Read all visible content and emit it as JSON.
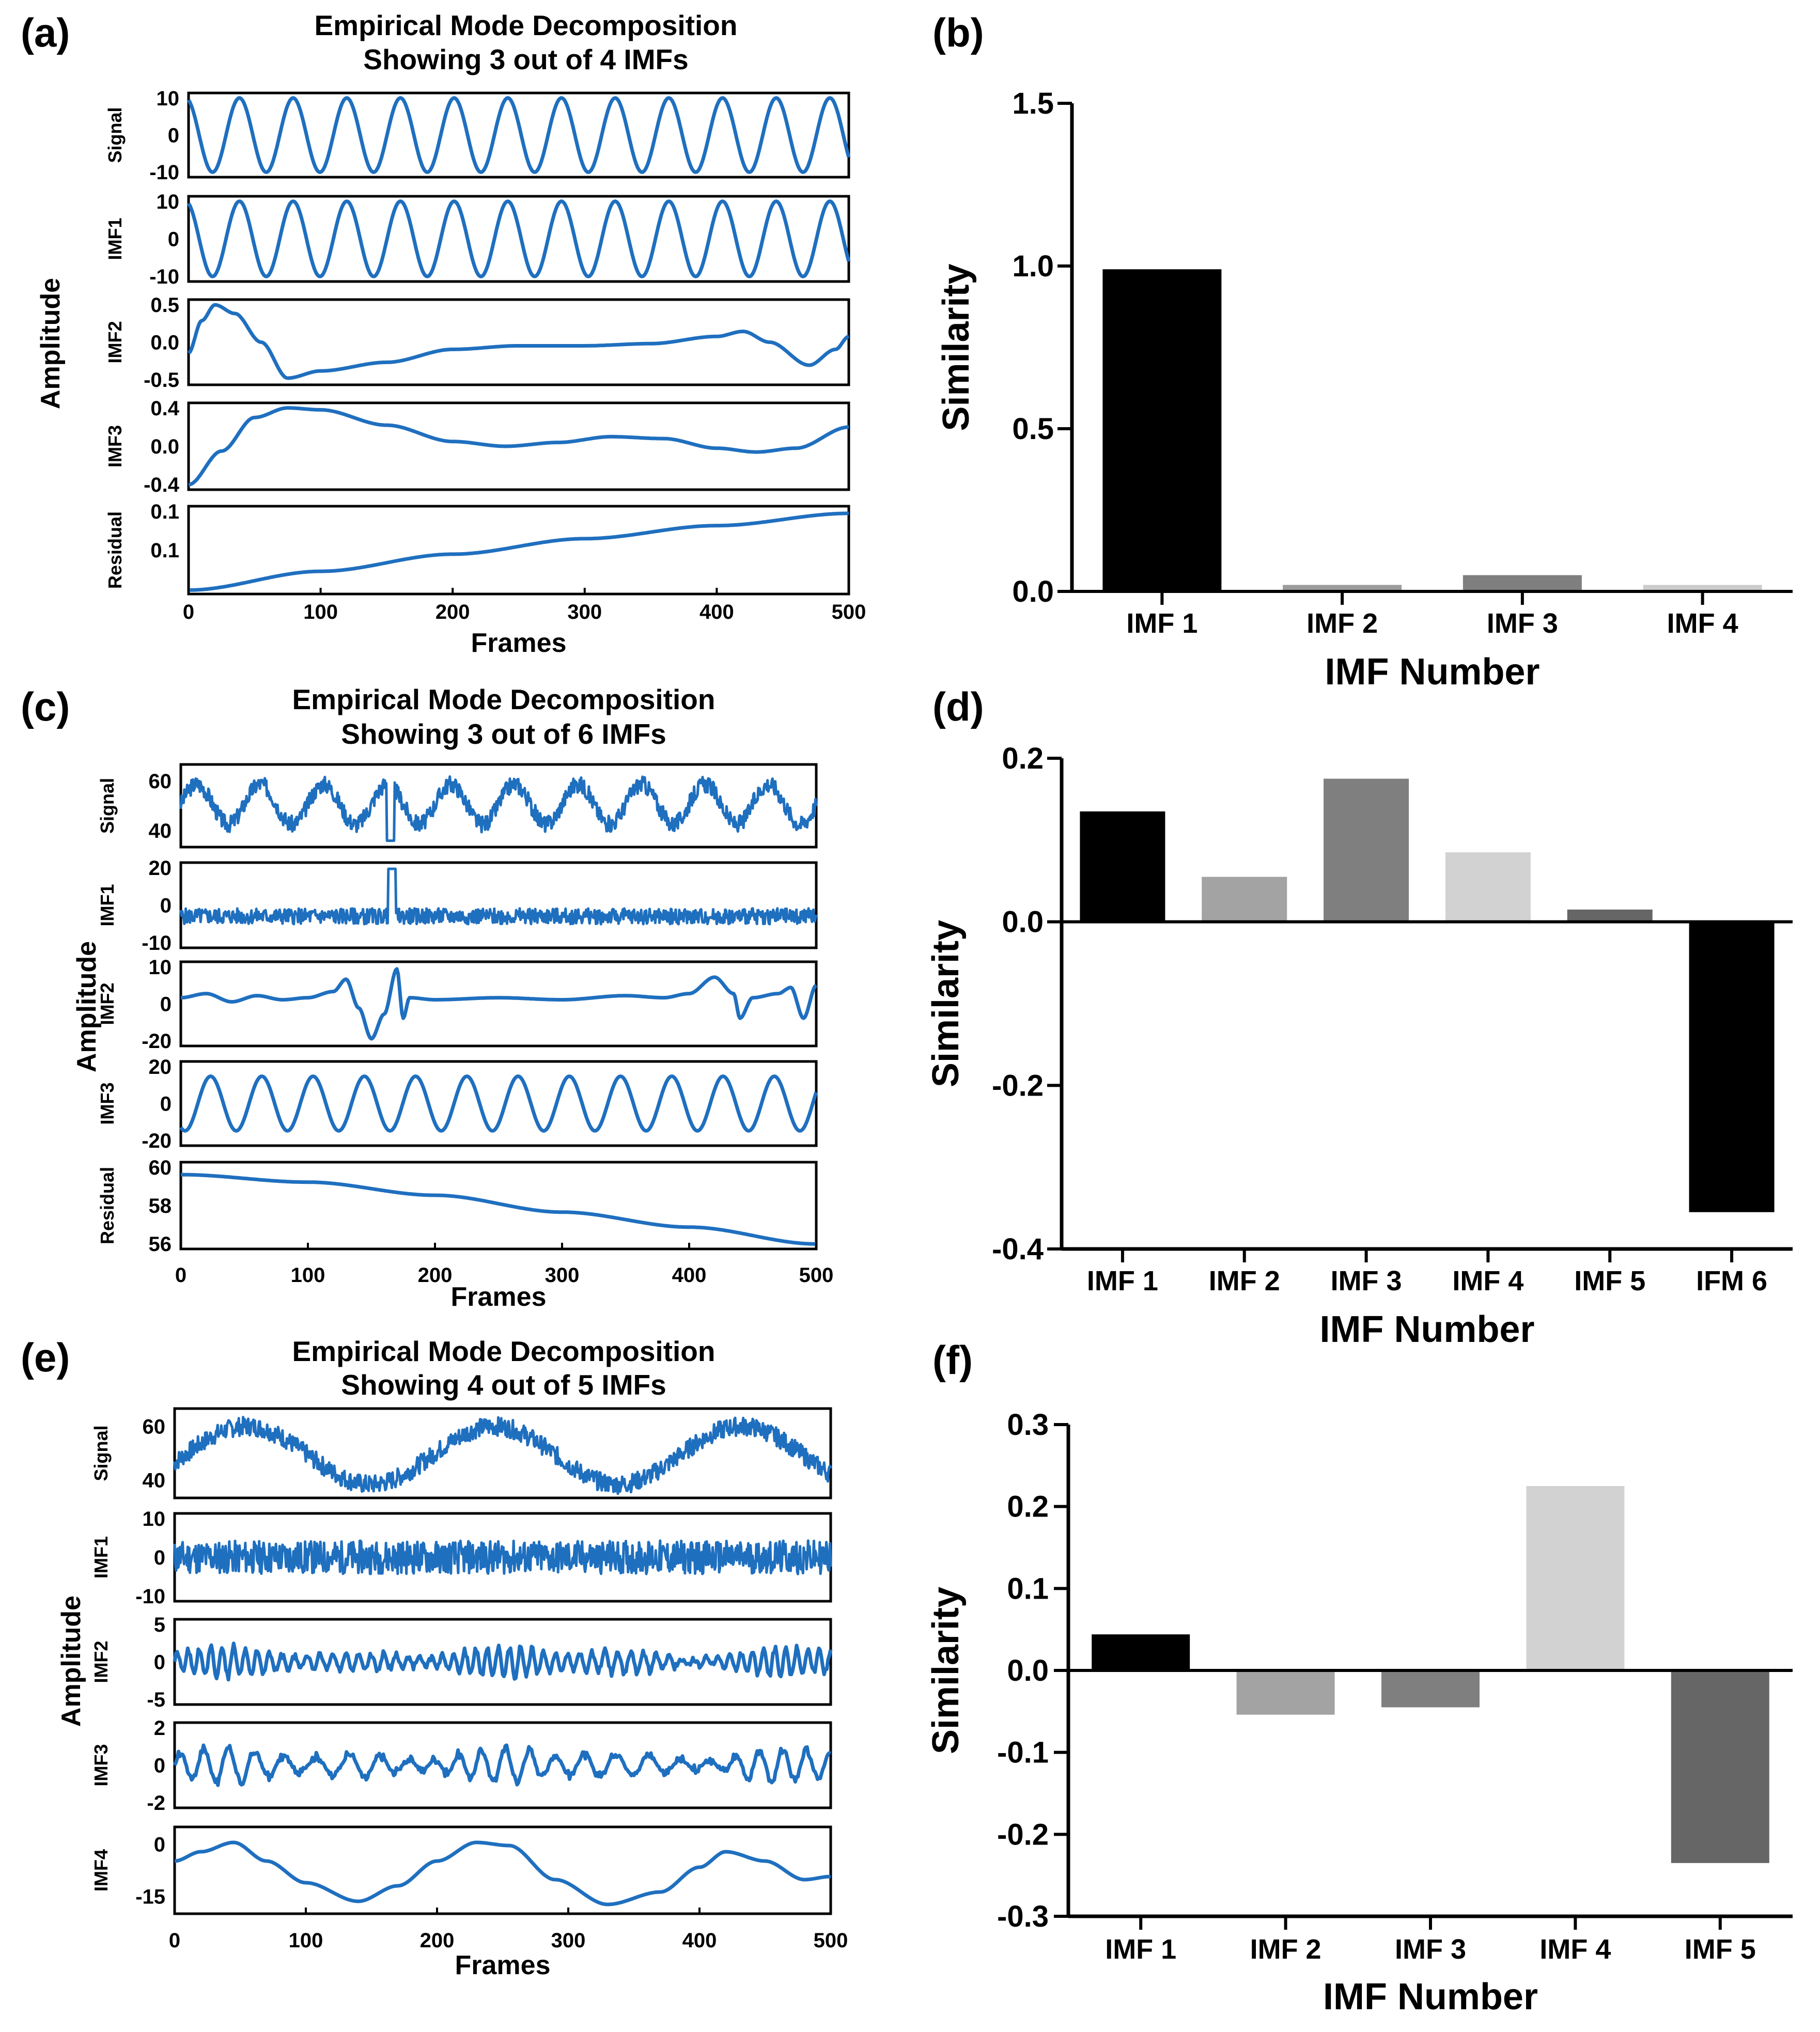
{
  "figure": {
    "panels": [
      {
        "id": "a",
        "label": "(a)",
        "kind": "emd",
        "title_lines": [
          "Empirical Mode Decomposition",
          "Showing 3 out of 4 IMFs"
        ],
        "xlabel": "Frames",
        "ylabel": "Amplitude",
        "xticks": [
          "0",
          "100",
          "200",
          "300",
          "400",
          "500"
        ],
        "line_color": "#1f6fbf",
        "rows": [
          {
            "name": "Signal",
            "ticks": [
              "10",
              "0",
              "-10"
            ],
            "signal": {
              "type": "sine",
              "amp": 10,
              "cycles": 12.3,
              "phase": 1.9
            }
          },
          {
            "name": "IMF1",
            "ticks": [
              "10",
              "0",
              "-10"
            ],
            "signal": {
              "type": "sine",
              "amp": 10,
              "cycles": 12.3,
              "phase": 1.9
            }
          },
          {
            "name": "IMF2",
            "ticks": [
              "0.5",
              "0.0",
              "-0.5"
            ],
            "signal": {
              "type": "points",
              "range": [
                -0.55,
                0.55
              ],
              "points": [
                [
                  0,
                  -0.15
                ],
                [
                  10,
                  0.3
                ],
                [
                  20,
                  0.52
                ],
                [
                  35,
                  0.4
                ],
                [
                  55,
                  0.0
                ],
                [
                  75,
                  -0.5
                ],
                [
                  100,
                  -0.4
                ],
                [
                  150,
                  -0.28
                ],
                [
                  200,
                  -0.1
                ],
                [
                  250,
                  -0.05
                ],
                [
                  300,
                  -0.05
                ],
                [
                  350,
                  -0.02
                ],
                [
                  400,
                  0.08
                ],
                [
                  420,
                  0.15
                ],
                [
                  440,
                  0.0
                ],
                [
                  470,
                  -0.32
                ],
                [
                  490,
                  -0.1
                ],
                [
                  500,
                  0.08
                ]
              ]
            }
          },
          {
            "name": "IMF3",
            "ticks": [
              "0.4",
              "0.0",
              "-0.4"
            ],
            "signal": {
              "type": "points",
              "range": [
                -0.42,
                0.42
              ],
              "points": [
                [
                  0,
                  -0.4
                ],
                [
                  25,
                  -0.05
                ],
                [
                  50,
                  0.3
                ],
                [
                  75,
                  0.4
                ],
                [
                  100,
                  0.38
                ],
                [
                  150,
                  0.22
                ],
                [
                  200,
                  0.05
                ],
                [
                  240,
                  0.0
                ],
                [
                  280,
                  0.04
                ],
                [
                  320,
                  0.1
                ],
                [
                  360,
                  0.08
                ],
                [
                  400,
                  -0.02
                ],
                [
                  430,
                  -0.06
                ],
                [
                  460,
                  -0.02
                ],
                [
                  500,
                  0.2
                ]
              ]
            }
          },
          {
            "name": "Residual",
            "ticks": [
              "0.1",
              "0.1",
              ""
            ],
            "signal": {
              "type": "points",
              "range": [
                0,
                1
              ],
              "points": [
                [
                  0,
                  0.01
                ],
                [
                  100,
                  0.24
                ],
                [
                  200,
                  0.45
                ],
                [
                  300,
                  0.64
                ],
                [
                  400,
                  0.8
                ],
                [
                  500,
                  0.95
                ]
              ]
            }
          }
        ]
      },
      {
        "id": "b",
        "label": "(b)",
        "kind": "bar",
        "chart_ref": 0
      },
      {
        "id": "c",
        "label": "(c)",
        "kind": "emd",
        "title_lines": [
          "Empirical Mode Decomposition",
          "Showing 3 out of 6 IMFs"
        ],
        "xlabel": "Frames",
        "ylabel": "Amplitude",
        "xticks": [
          "0",
          "100",
          "200",
          "300",
          "400",
          "500"
        ],
        "line_color": "#1f6fbf",
        "rows": [
          {
            "name": "Signal",
            "ticks": [
              "60",
              "40"
            ],
            "signal": {
              "type": "noisy",
              "base": 56,
              "amp": 12,
              "cycles": 10,
              "noise": 5,
              "range": [
                32,
                78
              ],
              "spike_at": 165,
              "spike": -22,
              "seed": 3
            }
          },
          {
            "name": "IMF1",
            "ticks": [
              "20",
              "0",
              "-10"
            ],
            "signal": {
              "type": "noisy",
              "base": 0,
              "amp": 0,
              "cycles": 1,
              "noise": 5,
              "range": [
                -18,
                32
              ],
              "spike_at": 166,
              "spike": 30,
              "seed": 5
            }
          },
          {
            "name": "IMF2",
            "ticks": [
              "10",
              "0",
              "-20"
            ],
            "signal": {
              "type": "points",
              "range": [
                -22,
                16
              ],
              "points": [
                [
                  0,
                  0
                ],
                [
                  20,
                  2
                ],
                [
                  40,
                  -2
                ],
                [
                  60,
                  1
                ],
                [
                  80,
                  -1
                ],
                [
                  100,
                  0
                ],
                [
                  120,
                  3
                ],
                [
                  130,
                  9
                ],
                [
                  140,
                  -5
                ],
                [
                  150,
                  -20
                ],
                [
                  160,
                  -8
                ],
                [
                  170,
                  14
                ],
                [
                  175,
                  -10
                ],
                [
                  180,
                  0
                ],
                [
                  200,
                  -1
                ],
                [
                  250,
                  0
                ],
                [
                  300,
                  -1
                ],
                [
                  350,
                  1
                ],
                [
                  380,
                  0
                ],
                [
                  400,
                  2
                ],
                [
                  420,
                  10
                ],
                [
                  435,
                  2
                ],
                [
                  440,
                  -10
                ],
                [
                  450,
                  0
                ],
                [
                  470,
                  2
                ],
                [
                  480,
                  5
                ],
                [
                  490,
                  -10
                ],
                [
                  500,
                  6
                ]
              ]
            }
          },
          {
            "name": "IMF3",
            "ticks": [
              "20",
              "0",
              "-20"
            ],
            "signal": {
              "type": "sine",
              "amp": 14,
              "cycles": 12.4,
              "phase": 4.2,
              "range": [
                -20,
                20
              ]
            }
          },
          {
            "name": "Residual",
            "ticks": [
              "60",
              "58",
              "56"
            ],
            "signal": {
              "type": "points",
              "range": [
                55.8,
                60.1
              ],
              "points": [
                [
                  0,
                  59.6
                ],
                [
                  100,
                  59.2
                ],
                [
                  200,
                  58.5
                ],
                [
                  300,
                  57.6
                ],
                [
                  400,
                  56.8
                ],
                [
                  500,
                  55.9
                ]
              ]
            }
          }
        ]
      },
      {
        "id": "d",
        "label": "(d)",
        "kind": "bar",
        "chart_ref": 1
      },
      {
        "id": "e",
        "label": "(e)",
        "kind": "emd",
        "title_lines": [
          "Empirical Mode Decomposition",
          "Showing 4 out of 5 IMFs"
        ],
        "xlabel": "Frames",
        "ylabel": "Amplitude",
        "xticks": [
          "0",
          "100",
          "200",
          "300",
          "400",
          "500"
        ],
        "line_color": "#1f6fbf",
        "rows": [
          {
            "name": "Signal",
            "ticks": [
              "60",
              "40"
            ],
            "signal": {
              "type": "noisy",
              "base": 55,
              "amp": 14,
              "cycles": 2.65,
              "phase": -0.25,
              "noise": 4.5,
              "range": [
                36,
                76
              ],
              "seed": 7
            }
          },
          {
            "name": "IMF1",
            "ticks": [
              "10",
              "0",
              "-10"
            ],
            "signal": {
              "type": "noisy",
              "base": 0,
              "amp": 0,
              "cycles": 1,
              "noise": 4.5,
              "range": [
                -11,
                11
              ],
              "seed": 11
            }
          },
          {
            "name": "IMF2",
            "ticks": [
              "5",
              "0",
              "-5"
            ],
            "signal": {
              "type": "burst",
              "amp": 2.2,
              "cycles": 55,
              "range": [
                -5.5,
                5.5
              ],
              "seed": 13
            }
          },
          {
            "name": "IMF3",
            "ticks": [
              "2",
              "0",
              "-2"
            ],
            "signal": {
              "type": "burst",
              "amp": 1.4,
              "cycles": 24,
              "range": [
                -3,
                3
              ],
              "seed": 17
            }
          },
          {
            "name": "IMF4",
            "ticks": [
              "0",
              "-15"
            ],
            "signal": {
              "type": "points",
              "range": [
                -18,
                8
              ],
              "points": [
                [
                  0,
                  -2
                ],
                [
                  20,
                  1
                ],
                [
                  45,
                  4
                ],
                [
                  70,
                  -2
                ],
                [
                  100,
                  -9
                ],
                [
                  140,
                  -15
                ],
                [
                  170,
                  -10
                ],
                [
                  200,
                  -2
                ],
                [
                  230,
                  4
                ],
                [
                  255,
                  3
                ],
                [
                  290,
                  -8
                ],
                [
                  330,
                  -16
                ],
                [
                  370,
                  -12
                ],
                [
                  400,
                  -4
                ],
                [
                  420,
                  1
                ],
                [
                  450,
                  -2
                ],
                [
                  480,
                  -8
                ],
                [
                  500,
                  -7
                ]
              ]
            }
          }
        ]
      },
      {
        "id": "f",
        "label": "(f)",
        "kind": "bar",
        "chart_ref": 2
      }
    ]
  },
  "chart_data": [
    {
      "type": "bar",
      "panel": "(b)",
      "title": "",
      "xlabel": "IMF Number",
      "ylabel": "Similarity",
      "categories": [
        "IMF 1",
        "IMF 2",
        "IMF 3",
        "IMF 4"
      ],
      "values": [
        0.99,
        0.02,
        0.05,
        0.02
      ],
      "bar_colors": [
        "#000000",
        "#9c9c9c",
        "#7f7f7f",
        "#cccccc"
      ],
      "ylim": [
        0.0,
        1.5
      ],
      "yticks": [
        0.0,
        0.5,
        1.0,
        1.5
      ],
      "ytick_labels": [
        "0.0",
        "0.5",
        "1.0",
        "1.5"
      ]
    },
    {
      "type": "bar",
      "panel": "(d)",
      "title": "",
      "xlabel": "IMF Number",
      "ylabel": "Similarity",
      "categories": [
        "IMF 1",
        "IMF 2",
        "IMF 3",
        "IMF 4",
        "IMF 5",
        "IFM 6"
      ],
      "values": [
        0.135,
        0.055,
        0.175,
        0.085,
        0.015,
        -0.355
      ],
      "bar_colors": [
        "#000000",
        "#a3a3a3",
        "#7f7f7f",
        "#d2d2d2",
        "#666666",
        "#000000"
      ],
      "ylim": [
        -0.4,
        0.2
      ],
      "yticks": [
        -0.4,
        -0.2,
        0.0,
        0.2
      ],
      "ytick_labels": [
        "-0.4",
        "-0.2",
        "0.0",
        "0.2"
      ]
    },
    {
      "type": "bar",
      "panel": "(f)",
      "title": "",
      "xlabel": "IMF Number",
      "ylabel": "Similarity",
      "categories": [
        "IMF 1",
        "IMF 2",
        "IMF 3",
        "IMF 4",
        "IMF 5"
      ],
      "values": [
        0.044,
        -0.054,
        -0.045,
        0.225,
        -0.235
      ],
      "bar_colors": [
        "#000000",
        "#a3a3a3",
        "#7f7f7f",
        "#d2d2d2",
        "#666666"
      ],
      "ylim": [
        -0.3,
        0.3
      ],
      "yticks": [
        -0.3,
        -0.2,
        -0.1,
        0.0,
        0.1,
        0.2,
        0.3
      ],
      "ytick_labels": [
        "-0.3",
        "-0.2",
        "-0.1",
        "0.0",
        "0.1",
        "0.2",
        "0.3"
      ]
    }
  ]
}
